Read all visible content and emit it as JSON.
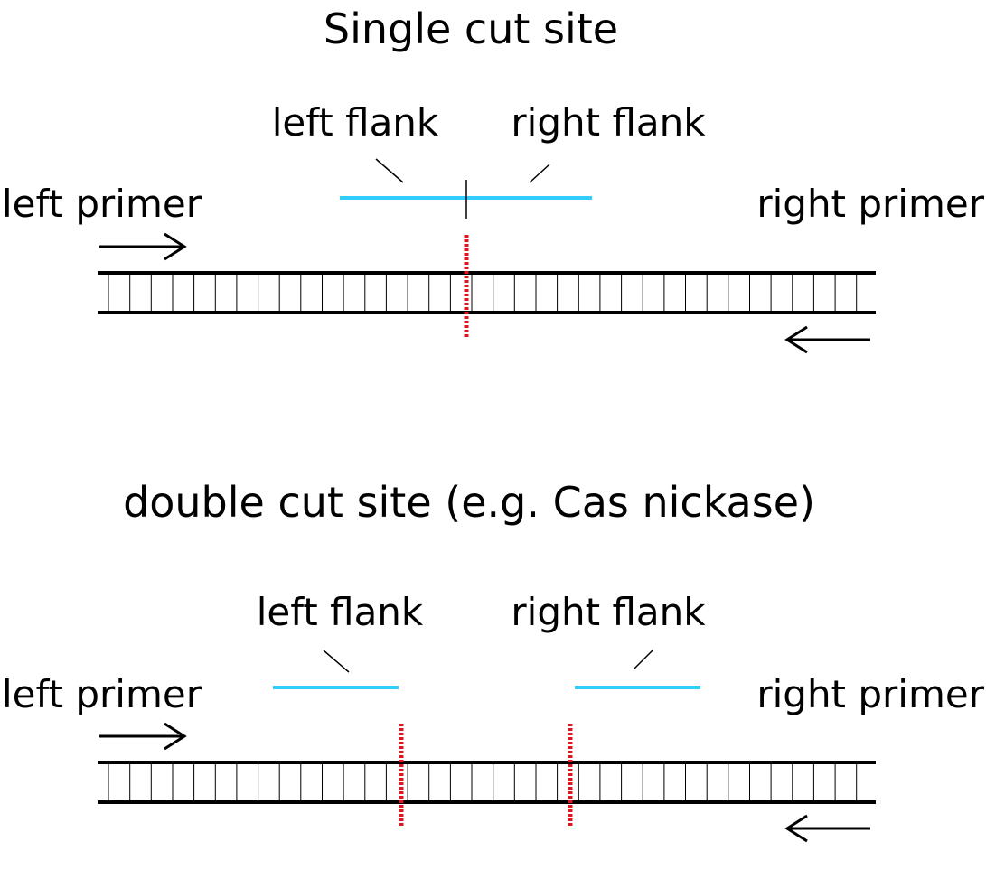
{
  "panels": [
    {
      "title": "Single cut site",
      "left_flank_label": "left flank",
      "right_flank_label": "right flank",
      "left_primer_label": "left primer",
      "right_primer_label": "right primer",
      "cut_sites": 1
    },
    {
      "title": "double cut site (e.g. Cas nickase)",
      "left_flank_label": "left flank",
      "right_flank_label": "right flank",
      "left_primer_label": "left primer",
      "right_primer_label": "right primer",
      "cut_sites": 2
    }
  ],
  "colors": {
    "strand": "#000000",
    "flank": "#33ccff",
    "cut_site": "#e0161e",
    "text": "#000000"
  }
}
